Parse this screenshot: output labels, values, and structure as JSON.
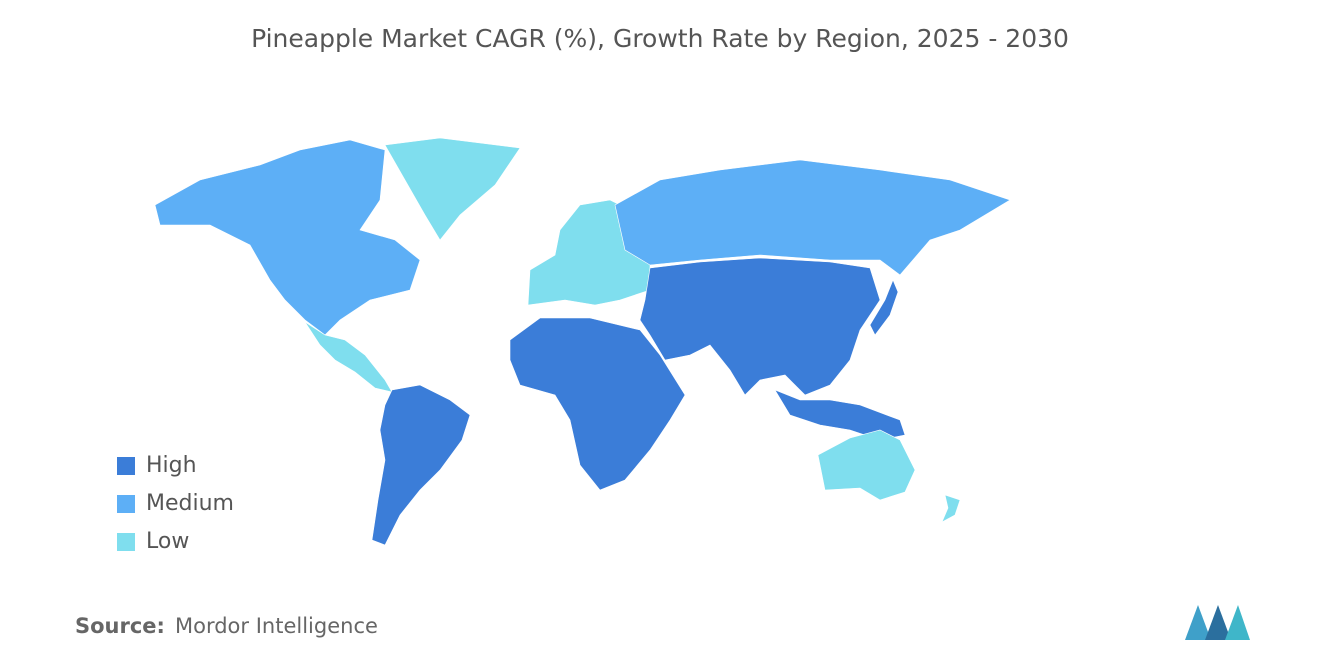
{
  "title": "Pineapple Market CAGR (%), Growth Rate by Region, 2025 - 2030",
  "legend": [
    {
      "label": "High",
      "color": "#3b7dd8"
    },
    {
      "label": "Medium",
      "color": "#5daff6"
    },
    {
      "label": "Low",
      "color": "#7fdeee"
    }
  ],
  "source": {
    "label": "Source:",
    "text": "Mordor Intelligence"
  }
}
